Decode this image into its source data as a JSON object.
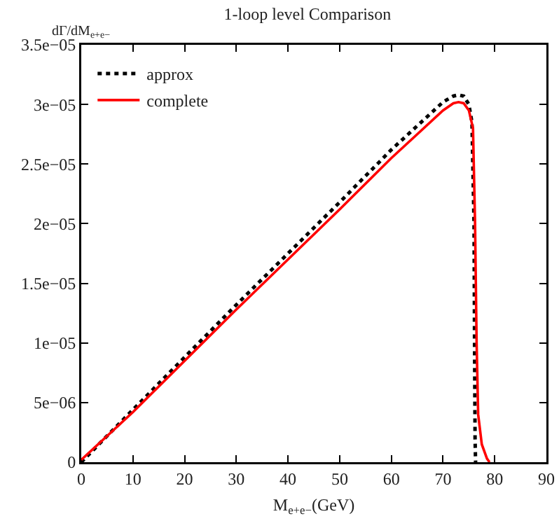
{
  "chart_data": {
    "type": "line",
    "title": "1-loop level Comparison",
    "xlabel": "M$_{e+e−}$(GeV)",
    "ylabel": "dΓ/dM$_{e+e−}$",
    "xlim": [
      0,
      90
    ],
    "xticks": [
      0,
      10,
      20,
      30,
      40,
      50,
      60,
      70,
      80,
      90
    ],
    "ylim": [
      0,
      3.5e-05
    ],
    "yticks": [
      0,
      {
        "value": 5e-06,
        "label": "5e−06"
      },
      {
        "value": 1e-05,
        "label": "1e−05"
      },
      {
        "value": 1.5e-05,
        "label": "1.5e−05"
      },
      {
        "value": 2e-05,
        "label": "2e−05"
      },
      {
        "value": 2.5e-05,
        "label": "2.5e−05"
      },
      {
        "value": 3e-05,
        "label": "3e−05"
      },
      {
        "value": 3.5e-05,
        "label": "3.5e−05"
      }
    ],
    "grid": false,
    "legend": "top left",
    "series": [
      {
        "name": "approx",
        "color": "#000000",
        "line_style": "dotted",
        "x": [
          0,
          10,
          20,
          30,
          40,
          50,
          60,
          65,
          70,
          72,
          73,
          74,
          75,
          75.6,
          76,
          76.1,
          76.2,
          76.3
        ],
        "values": [
          0,
          4.4e-06,
          8.8e-06,
          1.32e-05,
          1.75e-05,
          2.18e-05,
          2.62e-05,
          2.82e-05,
          3.02e-05,
          3.07e-05,
          3.08e-05,
          3.07e-05,
          3e-05,
          2.85e-05,
          2e-05,
          1e-05,
          2e-06,
          0
        ]
      },
      {
        "name": "complete",
        "color": "#ff0000",
        "line_style": "solid",
        "x": [
          0,
          10,
          20,
          30,
          40,
          50,
          60,
          65,
          70,
          72,
          73,
          74,
          75,
          75.8,
          76.2,
          76.5,
          76.8,
          77.5,
          78.5,
          79
        ],
        "values": [
          2e-07,
          4.2e-06,
          8.5e-06,
          1.28e-05,
          1.7e-05,
          2.12e-05,
          2.55e-05,
          2.75e-05,
          2.95e-05,
          3.01e-05,
          3.02e-05,
          3.01e-05,
          2.95e-05,
          2.8e-05,
          2e-05,
          1e-05,
          4e-06,
          1.5e-06,
          3e-07,
          0
        ]
      }
    ]
  }
}
